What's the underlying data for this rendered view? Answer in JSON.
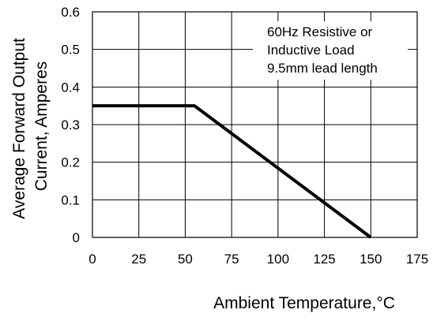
{
  "chart_data": {
    "type": "line",
    "title": "",
    "xlabel": "Ambient Temperature,°C",
    "ylabel_lines": [
      "Average Forward Output",
      "Current, Amperes"
    ],
    "xlim": [
      0,
      175
    ],
    "ylim": [
      0,
      0.6
    ],
    "x_ticks": [
      0,
      25,
      50,
      75,
      100,
      125,
      150,
      175
    ],
    "x_tick_labels": [
      "0",
      "25",
      "50",
      "75",
      "100",
      "125",
      "150",
      "175"
    ],
    "y_ticks": [
      0,
      0.1,
      0.2,
      0.3,
      0.4,
      0.5,
      0.6
    ],
    "y_tick_labels": [
      "0",
      "0.1",
      "0.2",
      "0.3",
      "0.4",
      "0.5",
      "0.6"
    ],
    "grid": true,
    "series": [
      {
        "x": [
          0,
          55,
          150
        ],
        "y": [
          0.35,
          0.35,
          0
        ]
      }
    ],
    "annotation_lines": [
      "60Hz Resistive or",
      "Inductive Load",
      "9.5mm lead length"
    ]
  }
}
